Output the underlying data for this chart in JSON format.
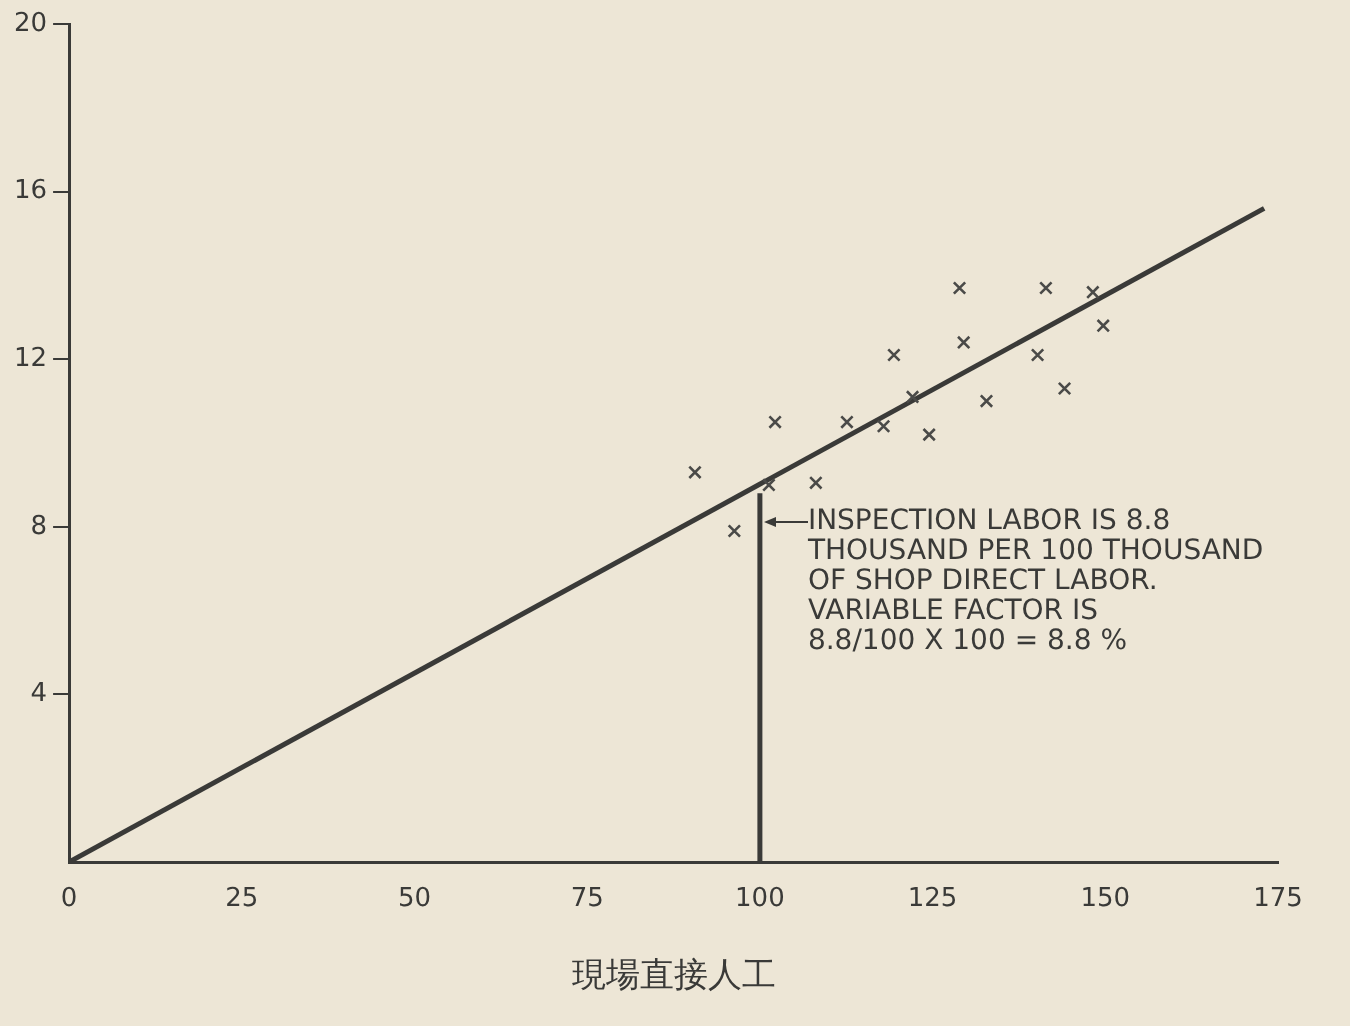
{
  "chart_data": {
    "type": "scatter",
    "xlabel": "現場直接人工",
    "xlim": [
      0,
      175
    ],
    "xticks": [
      0,
      25,
      50,
      75,
      100,
      125,
      150,
      175
    ],
    "ylim": [
      0,
      20
    ],
    "yticks": [
      4,
      8,
      12,
      16,
      20
    ],
    "grid": false,
    "legend": false,
    "marker": "cross",
    "series": [
      {
        "color": "#4a4a48",
        "x": [
          90.6,
          96.3,
          101.3,
          108.1,
          102.2,
          112.6,
          117.9,
          124.5,
          122.1,
          119.4,
          129.5,
          132.8,
          128.9,
          141.4,
          148.2,
          140.2,
          149.7,
          144.1
        ],
        "values": [
          9.3,
          7.9,
          9.0,
          9.05,
          10.5,
          10.5,
          10.4,
          10.2,
          11.1,
          12.1,
          12.4,
          11.0,
          13.7,
          13.7,
          13.6,
          12.1,
          12.8,
          11.3
        ]
      },
      {
        "type": "line",
        "color": "#3a3a38",
        "x": [
          0,
          173
        ],
        "values": [
          0,
          15.6
        ],
        "marker": "none"
      },
      {
        "type": "line",
        "color": "#3a3a38",
        "x": [
          100,
          100
        ],
        "values": [
          0,
          8.8
        ],
        "marker": "none"
      }
    ],
    "annotations": [
      {
        "text": "INSPECTION LABOR IS 8.8\nTHOUSAND PER 100 THOUSAND\nOF SHOP DIRECT LABOR.\nVARIABLE FACTOR IS\n8.8/100 X 100 = 8.8 %",
        "x": 100,
        "y": 8.8
      }
    ]
  }
}
